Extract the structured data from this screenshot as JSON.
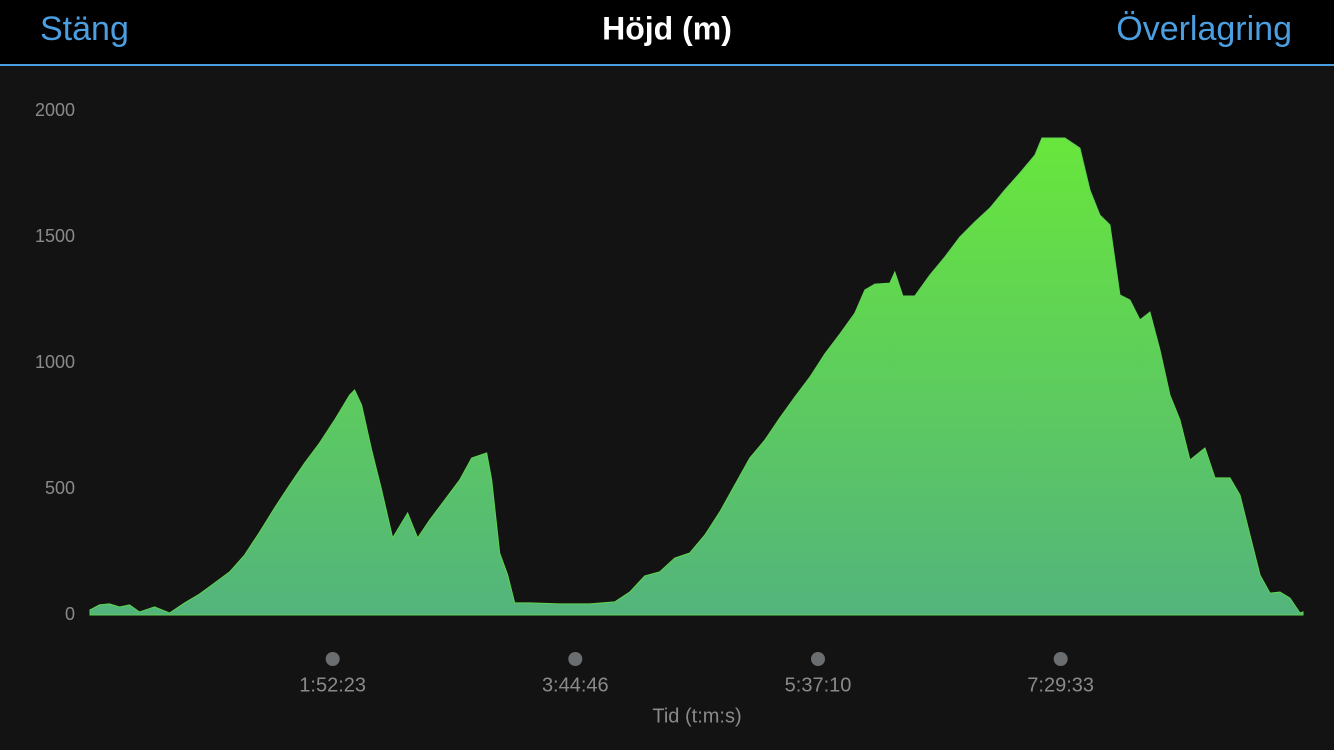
{
  "header": {
    "left_button": "Stäng",
    "title": "Höjd (m)",
    "right_button": "Överlagring"
  },
  "chart_data": {
    "type": "area",
    "x_label": "Tid (t:m:s)",
    "color": "#5fd452",
    "x": [
      0,
      264,
      542,
      820,
      1098,
      1376,
      1794,
      2210,
      2628,
      3044,
      3461,
      3878,
      4295,
      4712,
      5129,
      5546,
      5963,
      6380,
      6797,
      7214,
      7353,
      7548,
      7826,
      8104,
      8410,
      8827,
      9105,
      9438,
      9855,
      10272,
      10606,
      11023,
      11162,
      11384,
      11606,
      11801,
      12218,
      13052,
      13886,
      14581,
      14998,
      15415,
      15832,
      16249,
      16666,
      17083,
      17500,
      17917,
      18334,
      18751,
      19168,
      19585,
      20002,
      20419,
      20836,
      21253,
      21531,
      21809,
      22226,
      22365,
      22587,
      22921,
      23338,
      23755,
      24172,
      24589,
      25006,
      25423,
      25840,
      26257,
      26452,
      27091,
      27508,
      27786,
      28064,
      28342,
      28620,
      28898,
      29176,
      29454,
      29732,
      30010,
      30288,
      30566,
      30983,
      31261,
      31678,
      31956,
      32234,
      32512,
      32790,
      33068,
      33346,
      33624,
      33707
    ],
    "values": [
      20,
      40,
      44,
      32,
      40,
      12,
      32,
      8,
      48,
      83,
      127,
      171,
      238,
      329,
      425,
      516,
      603,
      683,
      774,
      873,
      893,
      833,
      655,
      496,
      306,
      405,
      306,
      377,
      456,
      536,
      623,
      643,
      536,
      246,
      159,
      48,
      48,
      44,
      44,
      52,
      91,
      155,
      171,
      226,
      246,
      317,
      409,
      516,
      623,
      694,
      782,
      865,
      944,
      1036,
      1115,
      1198,
      1290,
      1313,
      1317,
      1361,
      1266,
      1266,
      1349,
      1421,
      1500,
      1560,
      1615,
      1687,
      1754,
      1825,
      1893,
      1893,
      1853,
      1687,
      1587,
      1548,
      1270,
      1250,
      1171,
      1202,
      1052,
      873,
      774,
      615,
      663,
      544,
      544,
      476,
      317,
      159,
      87,
      91,
      67,
      8,
      12
    ],
    "xlim": [
      0,
      33707
    ],
    "xticks": [
      {
        "value": 6743,
        "label": "1:52:23"
      },
      {
        "value": 13486,
        "label": "3:44:46"
      },
      {
        "value": 20230,
        "label": "5:37:10"
      },
      {
        "value": 26973,
        "label": "7:29:33"
      }
    ],
    "ylim": [
      0,
      2000
    ],
    "yticks": [
      0,
      500,
      1000,
      1500,
      2000
    ]
  }
}
